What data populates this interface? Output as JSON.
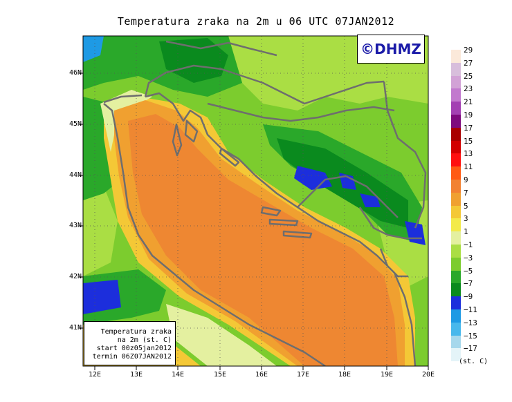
{
  "title": "Temperatura zraka na 2m u 06 UTC 07JAN2012",
  "logo": "©DHMZ",
  "info_box": {
    "line1": "Temperatura zraka",
    "line2": "na 2m (st. C)",
    "line3": "start 00z05jan2012",
    "line4": "termin 06Z07JAN2012"
  },
  "lat_labels": [
    "46N",
    "45N",
    "44N",
    "43N",
    "42N",
    "41N"
  ],
  "lon_labels": [
    "12E",
    "13E",
    "14E",
    "15E",
    "16E",
    "17E",
    "18E",
    "19E",
    "20E"
  ],
  "legend": {
    "levels": [
      "29",
      "27",
      "25",
      "23",
      "21",
      "19",
      "17",
      "15",
      "13",
      "11",
      "9",
      "7",
      "5",
      "3",
      "1",
      "−1",
      "−3",
      "−5",
      "−7",
      "−9",
      "−11",
      "−13",
      "−15",
      "−17"
    ],
    "colors": [
      "#fbe9da",
      "#d8bedc",
      "#d2a2d6",
      "#c279ce",
      "#a340b3",
      "#7e0a7e",
      "#a90000",
      "#d20000",
      "#ff1010",
      "#ff5a14",
      "#f28232",
      "#f0a030",
      "#f4c836",
      "#f3ea4a",
      "#e4f0a0",
      "#aade44",
      "#7ccc2e",
      "#2aa82a",
      "#0a8a1e",
      "#1c2edc",
      "#1e9ae4",
      "#48b8ec",
      "#a6d8ec",
      "#e4f4f8"
    ],
    "units": "(st. C)"
  },
  "map_colors": {
    "sea_orange": "#ee8732",
    "sea_warm": "#f0a030",
    "yellow": "#f4c836",
    "pale": "#e4f0a0",
    "lime": "#aade44",
    "green": "#7ccc2e",
    "dkgreen": "#2aa82a",
    "forest": "#0a8a1e",
    "blue": "#1c2edc",
    "border_gray": "#6e6e6e"
  }
}
